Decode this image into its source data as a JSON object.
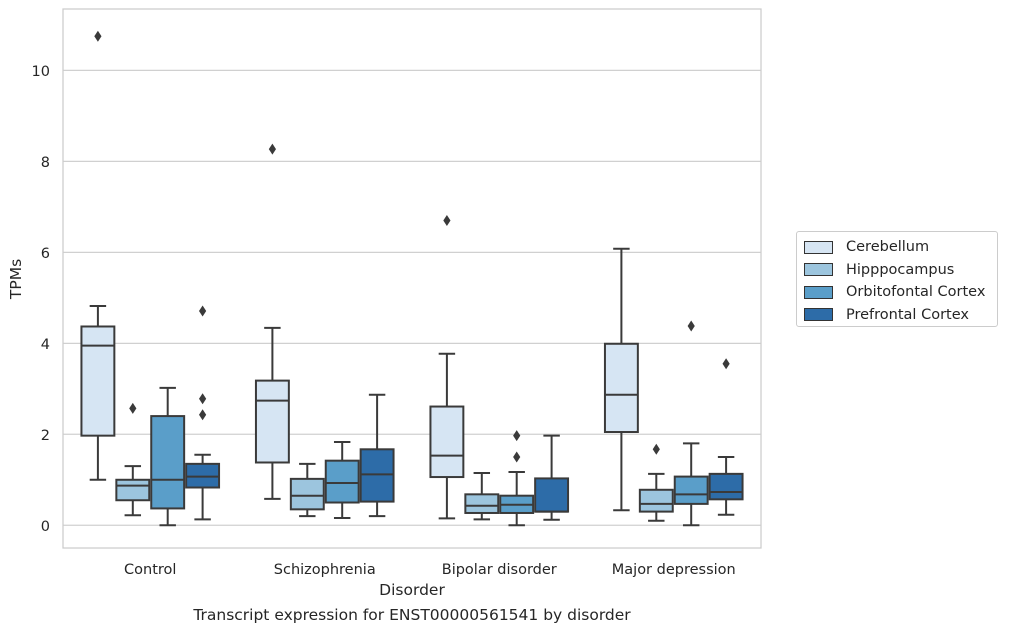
{
  "chart_data": {
    "type": "box",
    "title": "",
    "caption": "Transcript expression for ENST00000561541 by disorder",
    "xlabel": "Disorder",
    "ylabel": "TPMs",
    "ylim": [
      -0.5,
      11.35
    ],
    "yticks": [
      0,
      2,
      4,
      6,
      8,
      10
    ],
    "grid": "horizontal",
    "legend_position": "right",
    "categories": [
      "Control",
      "Schizophrenia",
      "Bipolar disorder",
      "Major depression"
    ],
    "series": [
      {
        "name": "Cerebellum",
        "color": "#d6e5f3",
        "boxes": [
          {
            "whislo": 1.0,
            "q1": 1.97,
            "med": 3.95,
            "q3": 4.37,
            "whishi": 4.82,
            "fliers": [
              10.75
            ]
          },
          {
            "whislo": 0.58,
            "q1": 1.38,
            "med": 2.74,
            "q3": 3.18,
            "whishi": 4.34,
            "fliers": [
              8.27
            ]
          },
          {
            "whislo": 0.15,
            "q1": 1.06,
            "med": 1.53,
            "q3": 2.61,
            "whishi": 3.77,
            "fliers": [
              6.7
            ]
          },
          {
            "whislo": 0.33,
            "q1": 2.05,
            "med": 2.87,
            "q3": 3.99,
            "whishi": 6.08,
            "fliers": []
          }
        ]
      },
      {
        "name": "Hipppocampus",
        "color": "#9cc5de",
        "boxes": [
          {
            "whislo": 0.22,
            "q1": 0.55,
            "med": 0.87,
            "q3": 1.0,
            "whishi": 1.3,
            "fliers": [
              2.57
            ]
          },
          {
            "whislo": 0.2,
            "q1": 0.35,
            "med": 0.65,
            "q3": 1.02,
            "whishi": 1.35,
            "fliers": []
          },
          {
            "whislo": 0.13,
            "q1": 0.27,
            "med": 0.43,
            "q3": 0.68,
            "whishi": 1.15,
            "fliers": []
          },
          {
            "whislo": 0.1,
            "q1": 0.3,
            "med": 0.47,
            "q3": 0.78,
            "whishi": 1.13,
            "fliers": [
              1.67
            ]
          }
        ]
      },
      {
        "name": "Orbitofontal Cortex",
        "color": "#5a9ec9",
        "boxes": [
          {
            "whislo": 0.0,
            "q1": 0.37,
            "med": 1.0,
            "q3": 2.4,
            "whishi": 3.02,
            "fliers": []
          },
          {
            "whislo": 0.16,
            "q1": 0.5,
            "med": 0.93,
            "q3": 1.42,
            "whishi": 1.83,
            "fliers": []
          },
          {
            "whislo": 0.0,
            "q1": 0.27,
            "med": 0.45,
            "q3": 0.65,
            "whishi": 1.17,
            "fliers": [
              1.5,
              1.97
            ]
          },
          {
            "whislo": 0.0,
            "q1": 0.47,
            "med": 0.68,
            "q3": 1.07,
            "whishi": 1.8,
            "fliers": [
              4.38
            ]
          }
        ]
      },
      {
        "name": "Prefrontal Cortex",
        "color": "#2d6ca8",
        "boxes": [
          {
            "whislo": 0.13,
            "q1": 0.83,
            "med": 1.07,
            "q3": 1.35,
            "whishi": 1.55,
            "fliers": [
              2.43,
              2.78,
              4.71
            ]
          },
          {
            "whislo": 0.2,
            "q1": 0.52,
            "med": 1.12,
            "q3": 1.67,
            "whishi": 2.87,
            "fliers": []
          },
          {
            "whislo": 0.12,
            "q1": 0.3,
            "med": 0.3,
            "q3": 1.03,
            "whishi": 1.97,
            "fliers": []
          },
          {
            "whislo": 0.23,
            "q1": 0.57,
            "med": 0.73,
            "q3": 1.13,
            "whishi": 1.5,
            "fliers": [
              3.55
            ]
          }
        ]
      }
    ]
  }
}
